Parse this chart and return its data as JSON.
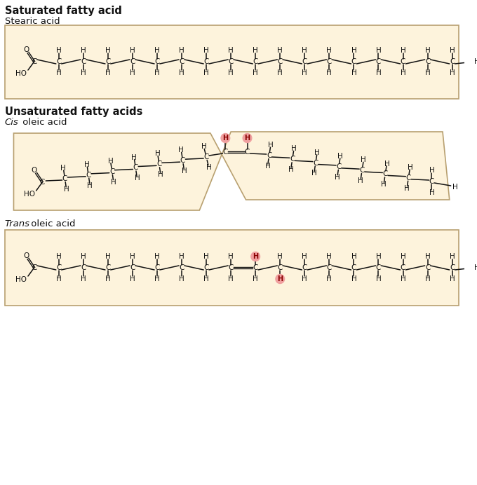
{
  "bg_color": "#fdf3dc",
  "box_edge_color": "#b8a070",
  "title1": "Saturated fatty acid",
  "subtitle1": "Stearic acid",
  "title2": "Unsaturated fatty acids",
  "subtitle2_italic": "Cis",
  "subtitle2_rest": " oleic acid",
  "subtitle3_italic": "Trans",
  "subtitle3_rest": " oleic acid",
  "highlight_color": "#f0a0a0",
  "text_color": "#111111",
  "chain_font_size": 7.5,
  "label_font_size": 9.5,
  "title_font_size": 10.5
}
